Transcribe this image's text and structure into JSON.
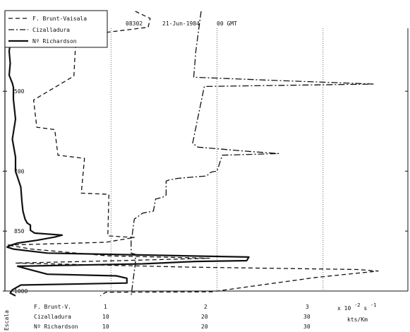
{
  "chart_data": {
    "type": "line",
    "header": {
      "station": "08302",
      "date": "21-Jun-1984",
      "time": "00 GMT"
    },
    "y_ticks": [
      "500",
      "700",
      "850",
      "1000"
    ],
    "ylim": [
      1000,
      300
    ],
    "y_tick_values": [
      500,
      700,
      850,
      1000
    ],
    "scale_axis_label": "Escala",
    "x_gridlines": [
      1,
      2,
      3
    ],
    "scale_rows": [
      {
        "name": "F. Brunt-V.",
        "values": [
          "1",
          "2",
          "3"
        ],
        "unit": "x 10",
        "unit_exp": "-2",
        "unit_rest": " s",
        "unit_exp2": "-1"
      },
      {
        "name": "Cizalladura",
        "values": [
          "10",
          "20",
          "30"
        ],
        "unit": "kts/Km"
      },
      {
        "name": "Nº Richardson",
        "values": [
          "10",
          "20",
          "30"
        ],
        "unit": ""
      }
    ],
    "xlim": [
      0,
      3.8
    ],
    "series": [
      {
        "name": "F. Brunt-Vaisala",
        "style": "dashed",
        "points": [
          [
            1.23,
            300
          ],
          [
            1.37,
            318
          ],
          [
            1.35,
            340
          ],
          [
            0.67,
            362
          ],
          [
            0.65,
            462
          ],
          [
            0.27,
            522
          ],
          [
            0.3,
            590
          ],
          [
            0.47,
            596
          ],
          [
            0.5,
            660
          ],
          [
            0.75,
            668
          ],
          [
            0.72,
            755
          ],
          [
            0.98,
            758
          ],
          [
            0.97,
            862
          ],
          [
            1.22,
            866
          ],
          [
            0.95,
            878
          ],
          [
            0.02,
            885
          ],
          [
            0.25,
            895
          ],
          [
            0.97,
            912
          ],
          [
            1.93,
            918
          ],
          [
            1.08,
            924
          ],
          [
            0.1,
            930
          ],
          [
            1.72,
            940
          ],
          [
            3.32,
            946
          ],
          [
            3.52,
            950
          ],
          [
            2.93,
            966
          ],
          [
            1.95,
            1002
          ],
          [
            0.95,
            1003
          ],
          [
            0.9,
            1012
          ]
        ]
      },
      {
        "name": "Cizalladura",
        "style": "dashdot",
        "points": [
          [
            1.85,
            300
          ],
          [
            1.8,
            400
          ],
          [
            1.78,
            465
          ],
          [
            2.45,
            472
          ],
          [
            3.48,
            482
          ],
          [
            1.88,
            488
          ],
          [
            1.77,
            630
          ],
          [
            1.82,
            640
          ],
          [
            2.27,
            650
          ],
          [
            2.58,
            656
          ],
          [
            2.05,
            660
          ],
          [
            2.0,
            700
          ],
          [
            1.95,
            702
          ],
          [
            1.93,
            705
          ],
          [
            1.92,
            708
          ],
          [
            1.9,
            712
          ],
          [
            1.63,
            718
          ],
          [
            1.55,
            722
          ],
          [
            1.52,
            725
          ],
          [
            1.52,
            760
          ],
          [
            1.49,
            765
          ],
          [
            1.42,
            770
          ],
          [
            1.4,
            800
          ],
          [
            1.3,
            805
          ],
          [
            1.22,
            820
          ],
          [
            1.2,
            860
          ],
          [
            1.19,
            875
          ],
          [
            1.19,
            905
          ],
          [
            1.23,
            908
          ],
          [
            1.23,
            930
          ],
          [
            1.19,
            1012
          ]
        ]
      },
      {
        "name": "Nº Richardson",
        "style": "solid",
        "points": [
          [
            0.14,
            300
          ],
          [
            0.15,
            305
          ],
          [
            0.12,
            320
          ],
          [
            0.06,
            360
          ],
          [
            0.04,
            400
          ],
          [
            0.05,
            430
          ],
          [
            0.04,
            460
          ],
          [
            0.07,
            480
          ],
          [
            0.08,
            490
          ],
          [
            0.08,
            520
          ],
          [
            0.1,
            570
          ],
          [
            0.07,
            620
          ],
          [
            0.1,
            665
          ],
          [
            0.1,
            700
          ],
          [
            0.15,
            740
          ],
          [
            0.16,
            775
          ],
          [
            0.17,
            800
          ],
          [
            0.19,
            820
          ],
          [
            0.21,
            830
          ],
          [
            0.24,
            835
          ],
          [
            0.24,
            848
          ],
          [
            0.28,
            855
          ],
          [
            0.54,
            860
          ],
          [
            0.47,
            865
          ],
          [
            0.3,
            873
          ],
          [
            0.12,
            880
          ],
          [
            0.06,
            885
          ],
          [
            0.02,
            890
          ],
          [
            0.08,
            895
          ],
          [
            0.4,
            905
          ],
          [
            2.3,
            915
          ],
          [
            2.28,
            924
          ],
          [
            1.8,
            926
          ],
          [
            1.3,
            932
          ],
          [
            0.12,
            938
          ],
          [
            0.2,
            944
          ],
          [
            0.4,
            958
          ],
          [
            1.05,
            962
          ],
          [
            1.15,
            968
          ],
          [
            1.15,
            980
          ],
          [
            0.15,
            985
          ],
          [
            0.07,
            997
          ],
          [
            0.05,
            1005
          ],
          [
            0.1,
            1012
          ]
        ]
      }
    ]
  }
}
